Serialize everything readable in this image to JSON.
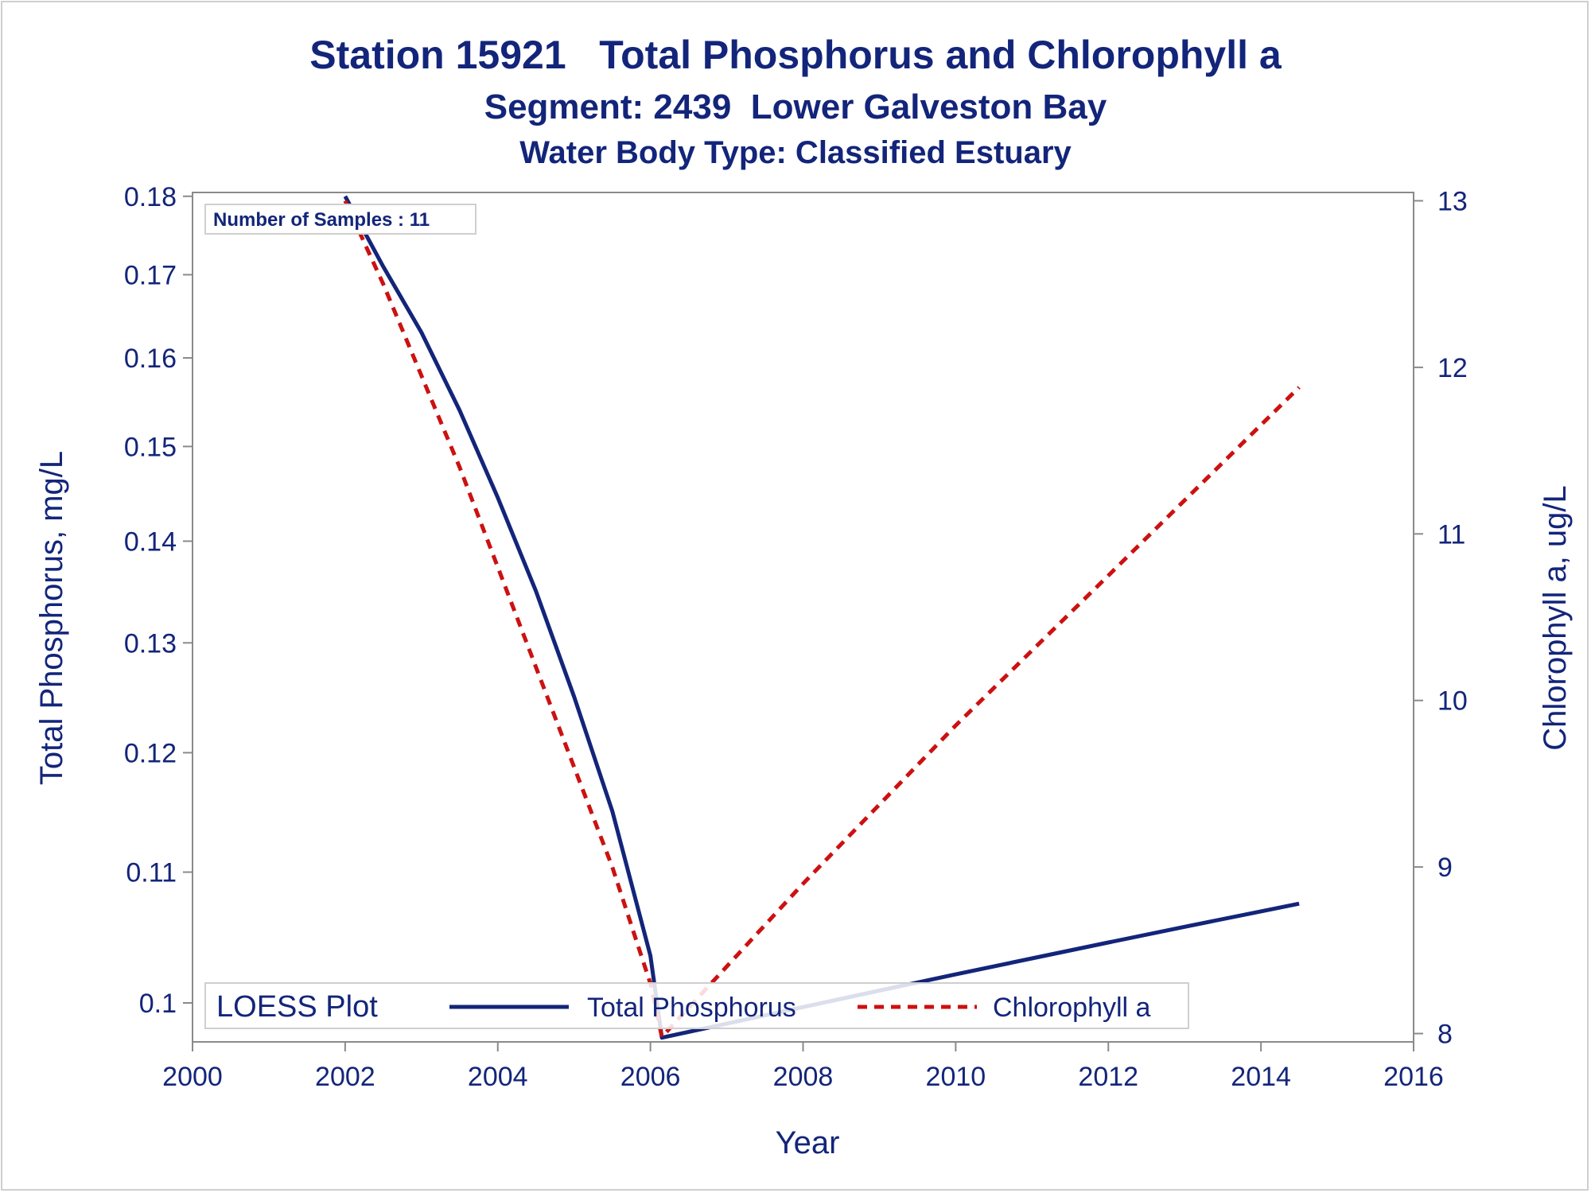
{
  "titles": {
    "line1": "Station 15921   Total Phosphorus and Chlorophyll a",
    "line2": "Segment: 2439  Lower Galveston Bay",
    "line3": "Water Body Type: Classified Estuary"
  },
  "inset_label": "Number of Samples : 11",
  "legend": {
    "title": "LOESS Plot",
    "items": [
      "Total Phosphorus",
      "Chlorophyll a"
    ]
  },
  "colors": {
    "text": "#13257a",
    "phosphorus": "#13257a",
    "chlorophyll": "#cc1111",
    "axis": "#8a8a8a"
  },
  "chart_data": {
    "type": "line",
    "xlabel": "Year",
    "ylabel_left": "Total Phosphorus, mg/L",
    "ylabel_right": "Chlorophyll a, ug/L",
    "x_ticks": [
      2000,
      2002,
      2004,
      2006,
      2008,
      2010,
      2012,
      2014,
      2016
    ],
    "xlim": [
      2000,
      2016
    ],
    "y_left_ticks": [
      0.1,
      0.11,
      0.12,
      0.13,
      0.14,
      0.15,
      0.16,
      0.17,
      0.18
    ],
    "y_left_ticklabels": [
      "0.1",
      "0.11",
      "0.12",
      "0.13",
      "0.14",
      "0.15",
      "0.16",
      "0.17",
      "0.18"
    ],
    "y_left_lim": [
      0.0972,
      0.1805
    ],
    "y_left_scale": "log",
    "y_right_ticks": [
      8,
      9,
      10,
      11,
      12,
      13
    ],
    "y_right_lim": [
      7.95,
      13.05
    ],
    "y_right_scale": "linear",
    "series": [
      {
        "name": "Total Phosphorus",
        "axis": "left",
        "style": "solid",
        "x": [
          2002.0,
          2002.5,
          2003.0,
          2003.5,
          2004.0,
          2004.5,
          2005.0,
          2005.5,
          2006.0,
          2006.15,
          2007.0,
          2008.0,
          2009.0,
          2010.0,
          2011.0,
          2012.0,
          2013.0,
          2014.0,
          2014.5
        ],
        "y": [
          0.18,
          0.171,
          0.163,
          0.154,
          0.1445,
          0.135,
          0.125,
          0.115,
          0.1035,
          0.0975,
          0.0985,
          0.0997,
          0.1009,
          0.1021,
          0.1033,
          0.1045,
          0.1057,
          0.1069,
          0.1075
        ]
      },
      {
        "name": "Chlorophyll a",
        "axis": "right",
        "style": "dashed",
        "x": [
          2002.0,
          2002.5,
          2003.0,
          2003.5,
          2004.0,
          2004.5,
          2005.0,
          2005.5,
          2006.0,
          2006.15,
          2008.0,
          2010.0,
          2012.0,
          2014.5
        ],
        "y": [
          13.0,
          12.5,
          11.95,
          11.4,
          10.8,
          10.2,
          9.6,
          9.0,
          8.3,
          7.98,
          8.9,
          9.85,
          10.75,
          11.88
        ]
      }
    ],
    "grid": false,
    "legend_position": "bottom-inside"
  }
}
